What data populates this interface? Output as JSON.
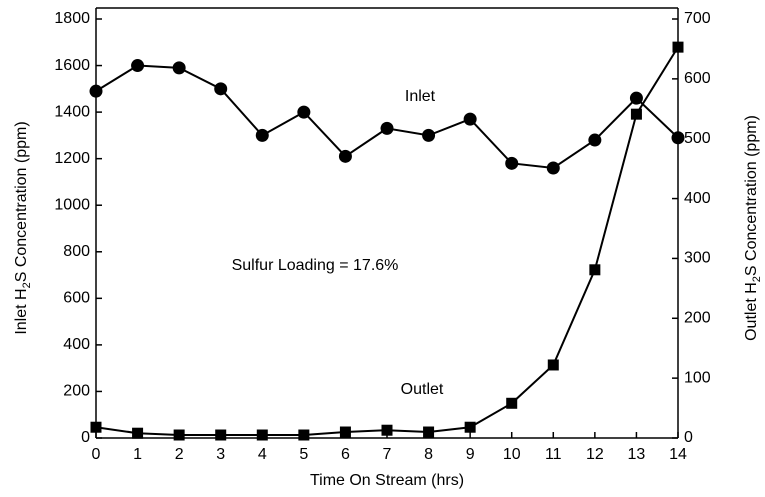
{
  "chart_data": {
    "type": "line",
    "xlabel": "Time On Stream (hrs)",
    "ylabel": [
      "Inlet H",
      "2",
      "S Concentration (ppm)"
    ],
    "y2label": [
      "Outlet H",
      "2",
      "S Concentration (ppm)"
    ],
    "annotations": [
      "Inlet",
      "Outlet",
      "Sulfur Loading = 17.6%"
    ],
    "x": [
      0,
      1,
      2,
      3,
      4,
      5,
      6,
      7,
      8,
      9,
      10,
      11,
      12,
      13,
      14
    ],
    "xlim": [
      0,
      14
    ],
    "xticks": [
      0,
      1,
      2,
      3,
      4,
      5,
      6,
      7,
      8,
      9,
      10,
      11,
      12,
      13,
      14
    ],
    "ylim": [
      0,
      1800
    ],
    "yticks": [
      0,
      200,
      400,
      600,
      800,
      1000,
      1200,
      1400,
      1600,
      1800
    ],
    "y2lim": [
      0,
      700
    ],
    "y2ticks": [
      0,
      100,
      200,
      300,
      400,
      500,
      600,
      700
    ],
    "series": [
      {
        "name": "Inlet",
        "color": "#000000",
        "marker": "circle",
        "values": [
          1490,
          1600,
          1590,
          1500,
          1300,
          1400,
          1210,
          1330,
          1300,
          1370,
          1180,
          1160,
          1280,
          1460,
          1290
        ]
      },
      {
        "name": "Outlet",
        "color": "#000000",
        "marker": "square",
        "axis": "y2",
        "values": [
          18,
          8,
          5,
          5,
          5,
          5,
          10,
          13,
          10,
          18,
          58,
          122,
          281,
          541,
          653
        ]
      }
    ]
  }
}
